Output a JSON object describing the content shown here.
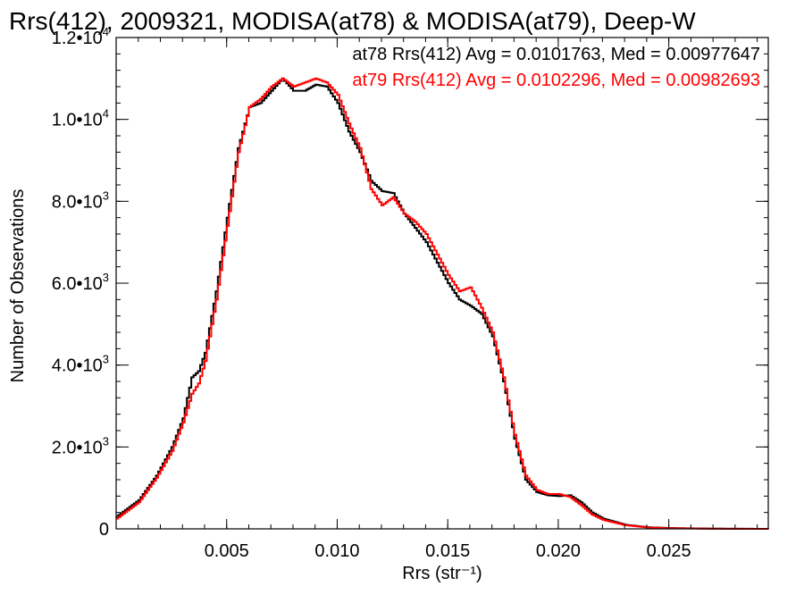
{
  "chart_data": {
    "type": "line",
    "title": "Rrs(412), 2009321, MODISA(at78) & MODISA(at79), Deep-W",
    "xlabel": "Rrs (str⁻¹)",
    "ylabel": "Number of Observations",
    "xlim": [
      0.0,
      0.0295
    ],
    "ylim": [
      0,
      12000
    ],
    "x_ticks": [
      {
        "value": 0.005,
        "label": "0.005"
      },
      {
        "value": 0.01,
        "label": "0.010"
      },
      {
        "value": 0.015,
        "label": "0.015"
      },
      {
        "value": 0.02,
        "label": "0.020"
      },
      {
        "value": 0.025,
        "label": "0.025"
      }
    ],
    "y_ticks": [
      {
        "value": 0,
        "mant": "0",
        "exp": ""
      },
      {
        "value": 2000,
        "mant": "2.0•10",
        "exp": "3"
      },
      {
        "value": 4000,
        "mant": "4.0•10",
        "exp": "3"
      },
      {
        "value": 6000,
        "mant": "6.0•10",
        "exp": "3"
      },
      {
        "value": 8000,
        "mant": "8.0•10",
        "exp": "3"
      },
      {
        "value": 10000,
        "mant": "1.0•10",
        "exp": "4"
      },
      {
        "value": 12000,
        "mant": "1.2•10",
        "exp": "4"
      }
    ],
    "grid": false,
    "legend_position": "top-right",
    "series": [
      {
        "name": "at78",
        "color": "#000000",
        "label": "at78 Rrs(412) Avg = 0.0101763, Med = 0.00977647",
        "points": [
          [
            0.0,
            300
          ],
          [
            0.001,
            700
          ],
          [
            0.0018,
            1300
          ],
          [
            0.0025,
            2000
          ],
          [
            0.003,
            2700
          ],
          [
            0.0034,
            3700
          ],
          [
            0.0037,
            3850
          ],
          [
            0.004,
            4300
          ],
          [
            0.0045,
            5800
          ],
          [
            0.005,
            7600
          ],
          [
            0.0055,
            9300
          ],
          [
            0.006,
            10300
          ],
          [
            0.0065,
            10400
          ],
          [
            0.007,
            10700
          ],
          [
            0.0075,
            11000
          ],
          [
            0.008,
            10700
          ],
          [
            0.0085,
            10700
          ],
          [
            0.009,
            10850
          ],
          [
            0.0095,
            10800
          ],
          [
            0.01,
            10400
          ],
          [
            0.0105,
            9700
          ],
          [
            0.011,
            9200
          ],
          [
            0.0115,
            8500
          ],
          [
            0.012,
            8250
          ],
          [
            0.0125,
            8200
          ],
          [
            0.013,
            7700
          ],
          [
            0.0135,
            7350
          ],
          [
            0.014,
            7000
          ],
          [
            0.0145,
            6500
          ],
          [
            0.015,
            6000
          ],
          [
            0.0155,
            5600
          ],
          [
            0.016,
            5450
          ],
          [
            0.0165,
            5250
          ],
          [
            0.017,
            4700
          ],
          [
            0.0175,
            3600
          ],
          [
            0.018,
            2200
          ],
          [
            0.0185,
            1200
          ],
          [
            0.019,
            900
          ],
          [
            0.0195,
            820
          ],
          [
            0.02,
            800
          ],
          [
            0.0205,
            820
          ],
          [
            0.021,
            650
          ],
          [
            0.0215,
            400
          ],
          [
            0.022,
            250
          ],
          [
            0.023,
            100
          ],
          [
            0.024,
            40
          ],
          [
            0.025,
            20
          ],
          [
            0.027,
            5
          ],
          [
            0.0295,
            0
          ]
        ]
      },
      {
        "name": "at79",
        "color": "#ff0000",
        "label": "at79 Rrs(412) Avg = 0.0102296, Med = 0.00982693",
        "points": [
          [
            0.0,
            250
          ],
          [
            0.001,
            650
          ],
          [
            0.0018,
            1250
          ],
          [
            0.0025,
            1900
          ],
          [
            0.003,
            2600
          ],
          [
            0.0034,
            3300
          ],
          [
            0.0037,
            3550
          ],
          [
            0.004,
            4100
          ],
          [
            0.0045,
            5600
          ],
          [
            0.005,
            7400
          ],
          [
            0.0055,
            9200
          ],
          [
            0.006,
            10300
          ],
          [
            0.0065,
            10500
          ],
          [
            0.007,
            10800
          ],
          [
            0.0075,
            11000
          ],
          [
            0.008,
            10800
          ],
          [
            0.0085,
            10900
          ],
          [
            0.009,
            11000
          ],
          [
            0.0095,
            10900
          ],
          [
            0.01,
            10600
          ],
          [
            0.0105,
            9900
          ],
          [
            0.011,
            9300
          ],
          [
            0.0115,
            8300
          ],
          [
            0.012,
            7900
          ],
          [
            0.0125,
            8100
          ],
          [
            0.013,
            7700
          ],
          [
            0.0135,
            7500
          ],
          [
            0.014,
            7200
          ],
          [
            0.0145,
            6700
          ],
          [
            0.015,
            6200
          ],
          [
            0.0155,
            5800
          ],
          [
            0.016,
            5900
          ],
          [
            0.0165,
            5400
          ],
          [
            0.017,
            4800
          ],
          [
            0.0175,
            3700
          ],
          [
            0.018,
            2300
          ],
          [
            0.0185,
            1300
          ],
          [
            0.019,
            950
          ],
          [
            0.0195,
            850
          ],
          [
            0.02,
            850
          ],
          [
            0.0205,
            780
          ],
          [
            0.021,
            580
          ],
          [
            0.0215,
            350
          ],
          [
            0.022,
            220
          ],
          [
            0.023,
            90
          ],
          [
            0.024,
            35
          ],
          [
            0.025,
            15
          ],
          [
            0.027,
            3
          ],
          [
            0.0295,
            0
          ]
        ]
      }
    ]
  }
}
